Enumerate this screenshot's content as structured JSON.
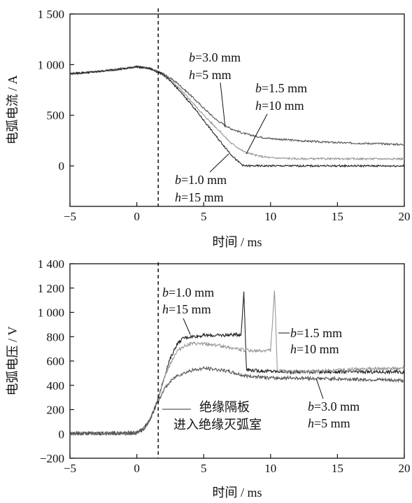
{
  "chart_data": [
    {
      "type": "line",
      "xlabel": "时间 / ms",
      "ylabel": "电弧电流 / A",
      "xlim": [
        -5,
        20
      ],
      "ylim": [
        -400,
        1500
      ],
      "x_ticks": [
        "−5",
        "0",
        "5",
        "10",
        "15",
        "20"
      ],
      "y_ticks": [
        "0",
        "500",
        "1 000",
        "1 500"
      ],
      "grid": false,
      "marker_line_x": 1.6,
      "series": [
        {
          "label_b": "b=3.0 mm",
          "label_h": "h=5 mm",
          "color": "#555555",
          "x": [
            -5,
            -3,
            -1,
            0,
            1,
            2,
            3,
            4,
            5,
            6,
            7,
            8,
            9,
            10,
            12,
            14,
            16,
            18,
            20
          ],
          "y": [
            910,
            930,
            960,
            980,
            960,
            910,
            820,
            700,
            570,
            450,
            370,
            320,
            290,
            270,
            250,
            235,
            225,
            220,
            210
          ]
        },
        {
          "label_b": "b=1.5 mm",
          "label_h": "h=10 mm",
          "color": "#999999",
          "x": [
            -5,
            -3,
            -1,
            0,
            1,
            2,
            3,
            4,
            5,
            6,
            7,
            8,
            9,
            10,
            12,
            14,
            16,
            18,
            20
          ],
          "y": [
            910,
            930,
            960,
            980,
            960,
            900,
            790,
            650,
            500,
            370,
            230,
            140,
            100,
            80,
            70,
            70,
            70,
            70,
            70
          ]
        },
        {
          "label_b": "b=1.0 mm",
          "label_h": "h=15 mm",
          "color": "#222222",
          "x": [
            -5,
            -3,
            -1,
            0,
            1,
            2,
            3,
            4,
            5,
            6,
            7,
            7.5,
            8,
            9,
            10,
            12,
            14,
            16,
            18,
            20
          ],
          "y": [
            910,
            930,
            960,
            980,
            960,
            900,
            770,
            620,
            450,
            280,
            120,
            50,
            0,
            0,
            0,
            0,
            0,
            0,
            0,
            0
          ]
        }
      ]
    },
    {
      "type": "line",
      "xlabel": "时间 / ms",
      "ylabel": "电弧电压 / V",
      "xlim": [
        -5,
        20
      ],
      "ylim": [
        -200,
        1400
      ],
      "x_ticks": [
        "−5",
        "0",
        "5",
        "10",
        "15",
        "20"
      ],
      "y_ticks": [
        "−200",
        "0",
        "200",
        "400",
        "600",
        "800",
        "1 000",
        "1 200",
        "1 400"
      ],
      "grid": false,
      "marker_line_x": 1.6,
      "annotation": [
        "绝缘隔板",
        "进入绝缘灭弧室"
      ],
      "series": [
        {
          "label_b": "b=1.0 mm",
          "label_h": "h=15 mm",
          "color": "#222222",
          "x": [
            -5,
            -3,
            -1,
            0,
            0.5,
            1,
            1.5,
            2,
            2.5,
            3,
            3.5,
            4,
            5,
            6,
            7,
            7.8,
            8,
            8.2,
            9,
            10,
            12,
            14,
            16,
            18,
            20
          ],
          "y": [
            5,
            5,
            5,
            10,
            40,
            120,
            260,
            450,
            620,
            740,
            790,
            800,
            810,
            810,
            815,
            820,
            1170,
            530,
            520,
            515,
            510,
            510,
            510,
            510,
            510
          ]
        },
        {
          "label_b": "b=1.5 mm",
          "label_h": "h=10 mm",
          "color": "#999999",
          "x": [
            -5,
            -3,
            -1,
            0,
            0.5,
            1,
            1.5,
            2,
            2.5,
            3,
            3.5,
            4,
            5,
            6,
            7,
            8,
            9,
            10,
            10.3,
            10.5,
            11,
            12,
            14,
            16,
            18,
            20
          ],
          "y": [
            5,
            5,
            5,
            10,
            40,
            120,
            260,
            440,
            580,
            680,
            720,
            740,
            740,
            730,
            710,
            690,
            680,
            690,
            1180,
            520,
            515,
            510,
            520,
            530,
            535,
            540
          ]
        },
        {
          "label_b": "b=3.0 mm",
          "label_h": "h=5 mm",
          "color": "#555555",
          "x": [
            -5,
            -3,
            -1,
            0,
            0.5,
            1,
            1.5,
            2,
            2.5,
            3,
            3.5,
            4,
            5,
            6,
            7,
            8,
            9,
            10,
            12,
            14,
            16,
            18,
            20
          ],
          "y": [
            5,
            5,
            5,
            10,
            40,
            120,
            250,
            360,
            430,
            480,
            500,
            520,
            540,
            530,
            510,
            480,
            470,
            460,
            460,
            455,
            450,
            445,
            440
          ]
        }
      ]
    }
  ]
}
